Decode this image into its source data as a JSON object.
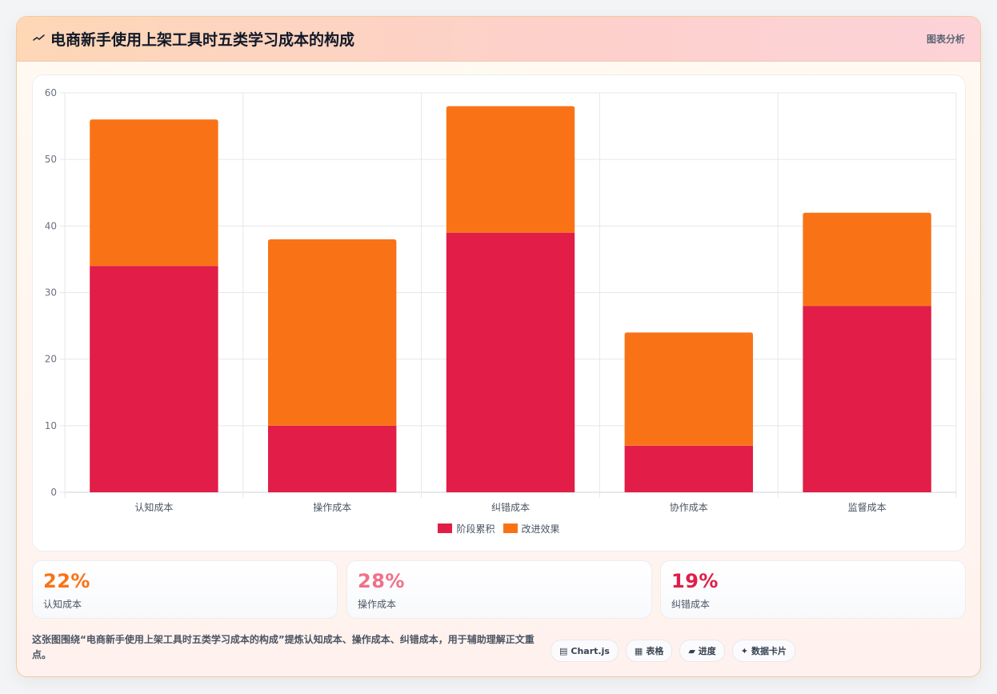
{
  "header": {
    "icon": "chart-wave-icon",
    "title": "电商新手使用上架工具时五类学习成本的构成",
    "tag": "图表分析"
  },
  "chart_data": {
    "type": "bar",
    "stacked": true,
    "categories": [
      "认知成本",
      "操作成本",
      "纠错成本",
      "协作成本",
      "监督成本"
    ],
    "series": [
      {
        "name": "阶段累积",
        "values": [
          34,
          10,
          39,
          7,
          28
        ],
        "color": "#e11d48"
      },
      {
        "name": "改进效果",
        "values": [
          22,
          28,
          19,
          17,
          14
        ],
        "color": "#f97316"
      }
    ],
    "ylim": [
      0,
      60
    ],
    "yticks": [
      0,
      10,
      20,
      30,
      40,
      50,
      60
    ],
    "grid": true,
    "legend": "bottom"
  },
  "stats": [
    {
      "value": "22%",
      "label": "认知成本",
      "color": "#f97316"
    },
    {
      "value": "28%",
      "label": "操作成本",
      "color": "#f0708a"
    },
    {
      "value": "19%",
      "label": "纠错成本",
      "color": "#e11d48"
    }
  ],
  "footer": {
    "description": "这张图围绕“电商新手使用上架工具时五类学习成本的构成”提炼认知成本、操作成本、纠错成本，用于辅助理解正文重点。",
    "pills": [
      {
        "icon": "chart-icon",
        "glyph": "▤",
        "label": "Chart.js"
      },
      {
        "icon": "table-icon",
        "glyph": "▦",
        "label": "表格"
      },
      {
        "icon": "progress-icon",
        "glyph": "▰",
        "label": "进度"
      },
      {
        "icon": "sparkle-icon",
        "glyph": "✦",
        "label": "数据卡片"
      }
    ]
  }
}
